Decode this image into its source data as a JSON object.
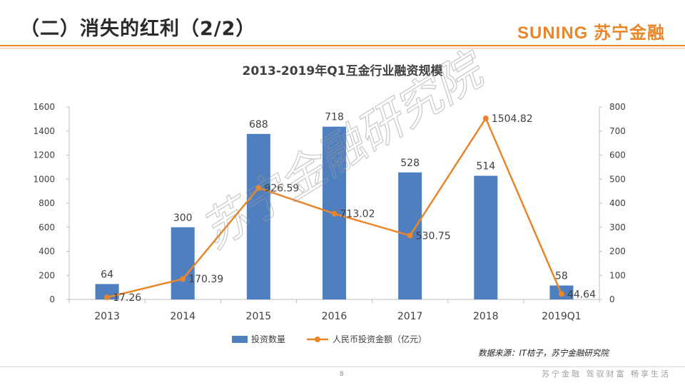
{
  "header": {
    "title": "（二）消失的红利（2/2）",
    "logo": "SUNING 苏宁金融"
  },
  "chart_data": {
    "type": "bar",
    "title": "2013-2019年Q1互金行业融资规模",
    "categories": [
      "2013",
      "2014",
      "2015",
      "2016",
      "2017",
      "2018",
      "2019Q1"
    ],
    "series": [
      {
        "name": "投资数量",
        "type": "bar",
        "axis": "right",
        "values": [
          64,
          300,
          688,
          718,
          528,
          514,
          58
        ],
        "color": "#4f7fbf"
      },
      {
        "name": "人民币投资金额（亿元）",
        "type": "line",
        "axis": "left",
        "values": [
          17.26,
          170.39,
          926.59,
          713.02,
          530.75,
          1504.82,
          44.64
        ],
        "color": "#e9862a"
      }
    ],
    "left_axis": {
      "ylim": [
        0,
        1600
      ],
      "ticks": [
        0,
        200,
        400,
        600,
        800,
        1000,
        1200,
        1400,
        1600
      ]
    },
    "right_axis": {
      "ylim": [
        0,
        800
      ],
      "ticks": [
        0,
        100,
        200,
        300,
        400,
        500,
        600,
        700,
        800
      ]
    },
    "legend_position": "bottom",
    "grid": false
  },
  "watermark": "苏宁金融研究院",
  "source": "数据来源：IT桔子，苏宁金融研究院",
  "page_number": "8",
  "slogan": "苏宁金融  驾驭财富  畅享生活"
}
